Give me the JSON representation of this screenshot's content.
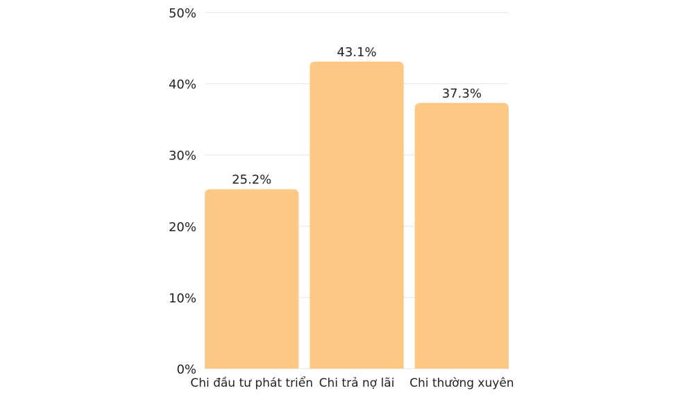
{
  "chart_data": {
    "type": "bar",
    "categories": [
      "Chi đầu tư phát triển",
      "Chi trả nợ lãi",
      "Chi thường xuyên"
    ],
    "values": [
      25.2,
      43.1,
      37.3
    ],
    "data_labels": [
      "25.2%",
      "43.1%",
      "37.3%"
    ],
    "title": "",
    "xlabel": "",
    "ylabel": "",
    "ylim": [
      0,
      50
    ],
    "yticks": [
      0,
      10,
      20,
      30,
      40,
      50
    ],
    "ytick_labels": [
      "0%",
      "10%",
      "20%",
      "30%",
      "40%",
      "50%"
    ],
    "grid": true,
    "legend": "none",
    "colors": {
      "bar": "#FCC884",
      "grid": "#E6E6E6",
      "text": "#222222"
    }
  }
}
